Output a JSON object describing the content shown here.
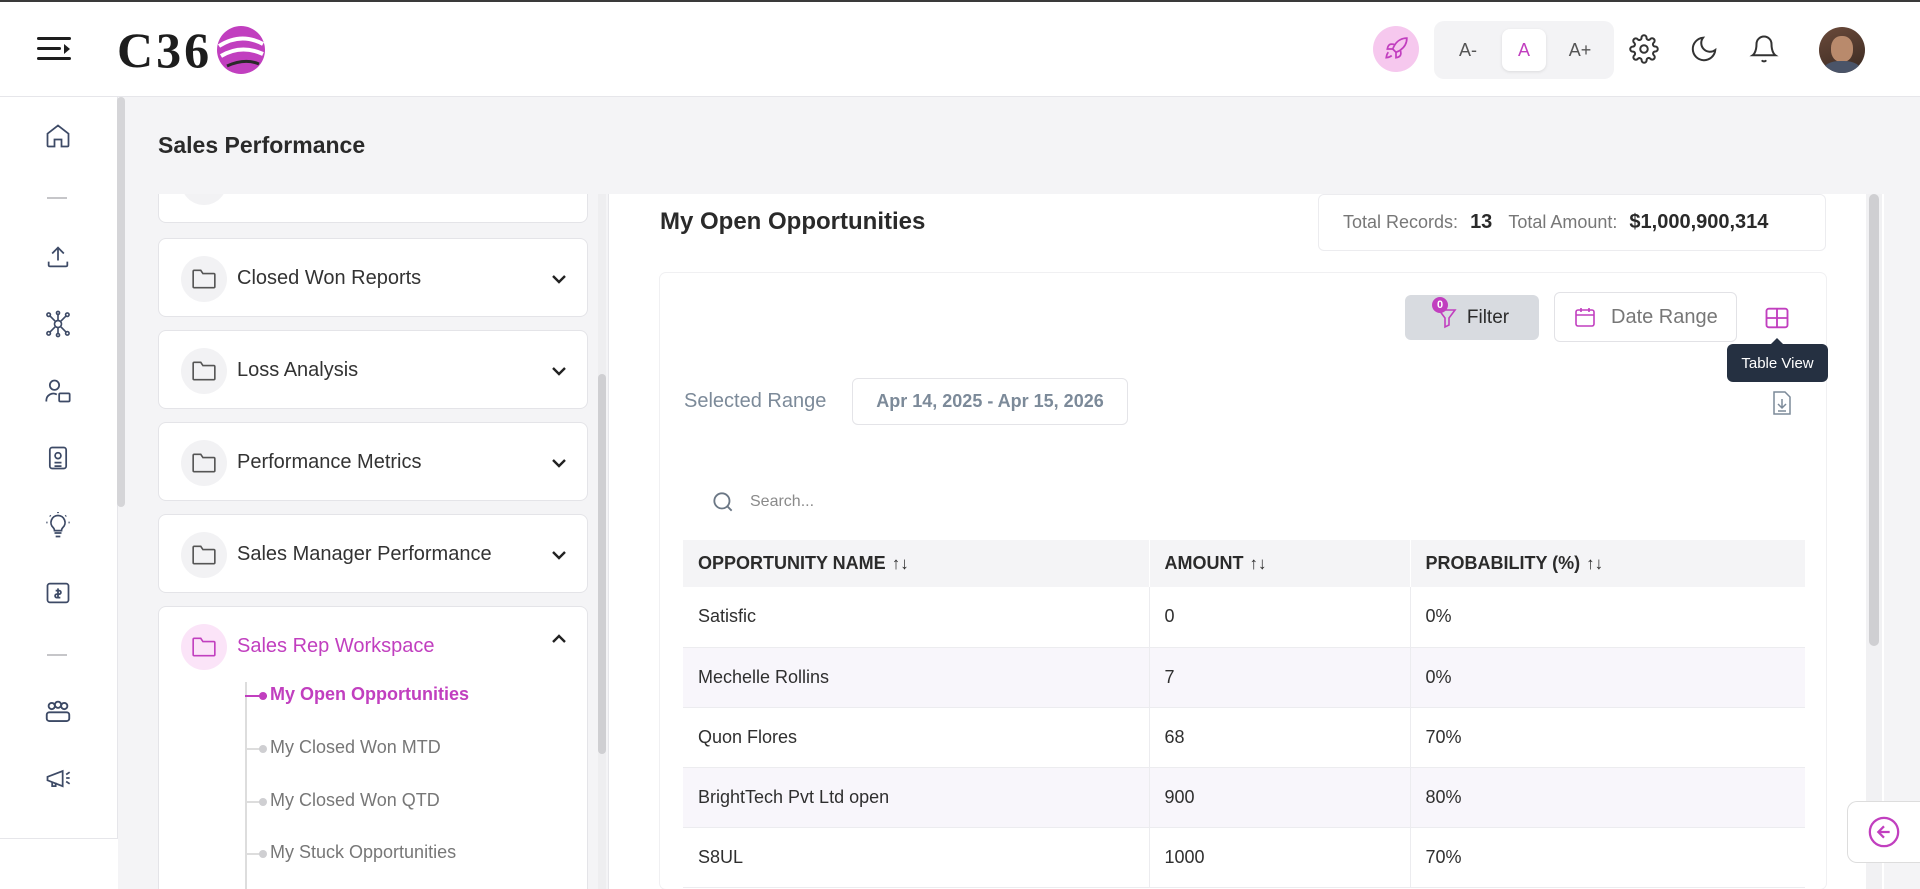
{
  "app": {
    "logo_text": "C36",
    "font_controls": {
      "decrease": "A-",
      "normal": "A",
      "increase": "A+"
    }
  },
  "page": {
    "title": "Sales Performance"
  },
  "sidebar": {
    "folders": [
      {
        "label": "Closed Won Reports"
      },
      {
        "label": "Loss Analysis"
      },
      {
        "label": "Performance Metrics"
      },
      {
        "label": "Sales Manager Performance"
      },
      {
        "label": "Sales Rep Workspace"
      }
    ],
    "sub_items": [
      {
        "label": "My Open Opportunities"
      },
      {
        "label": "My Closed Won MTD"
      },
      {
        "label": "My Closed Won QTD"
      },
      {
        "label": "My Stuck Opportunities"
      }
    ]
  },
  "report": {
    "title": "My Open Opportunities",
    "total_records_label": "Total Records:",
    "total_records_value": "13",
    "total_amount_label": "Total Amount:",
    "total_amount_value": "$1,000,900,314",
    "filter_label": "Filter",
    "filter_count": "0",
    "date_range_label": "Date Range",
    "table_view_tooltip": "Table View",
    "selected_range_label": "Selected Range",
    "selected_range_value": "Apr 14, 2025 - Apr 15, 2026",
    "search_placeholder": "Search...",
    "columns": [
      "OPPORTUNITY NAME",
      "AMOUNT",
      "PROBABILITY (%)"
    ],
    "rows": [
      {
        "name": "Satisfic",
        "amount": "0",
        "probability": "0%"
      },
      {
        "name": "Mechelle Rollins",
        "amount": "7",
        "probability": "0%"
      },
      {
        "name": "Quon Flores",
        "amount": "68",
        "probability": "70%"
      },
      {
        "name": "BrightTech Pvt Ltd open",
        "amount": "900",
        "probability": "80%"
      },
      {
        "name": "S8UL",
        "amount": "1000",
        "probability": "70%"
      }
    ]
  },
  "colors": {
    "accent": "#c13fbf",
    "tooltip_bg": "#253041",
    "filter_bg": "#d8dbe0"
  }
}
